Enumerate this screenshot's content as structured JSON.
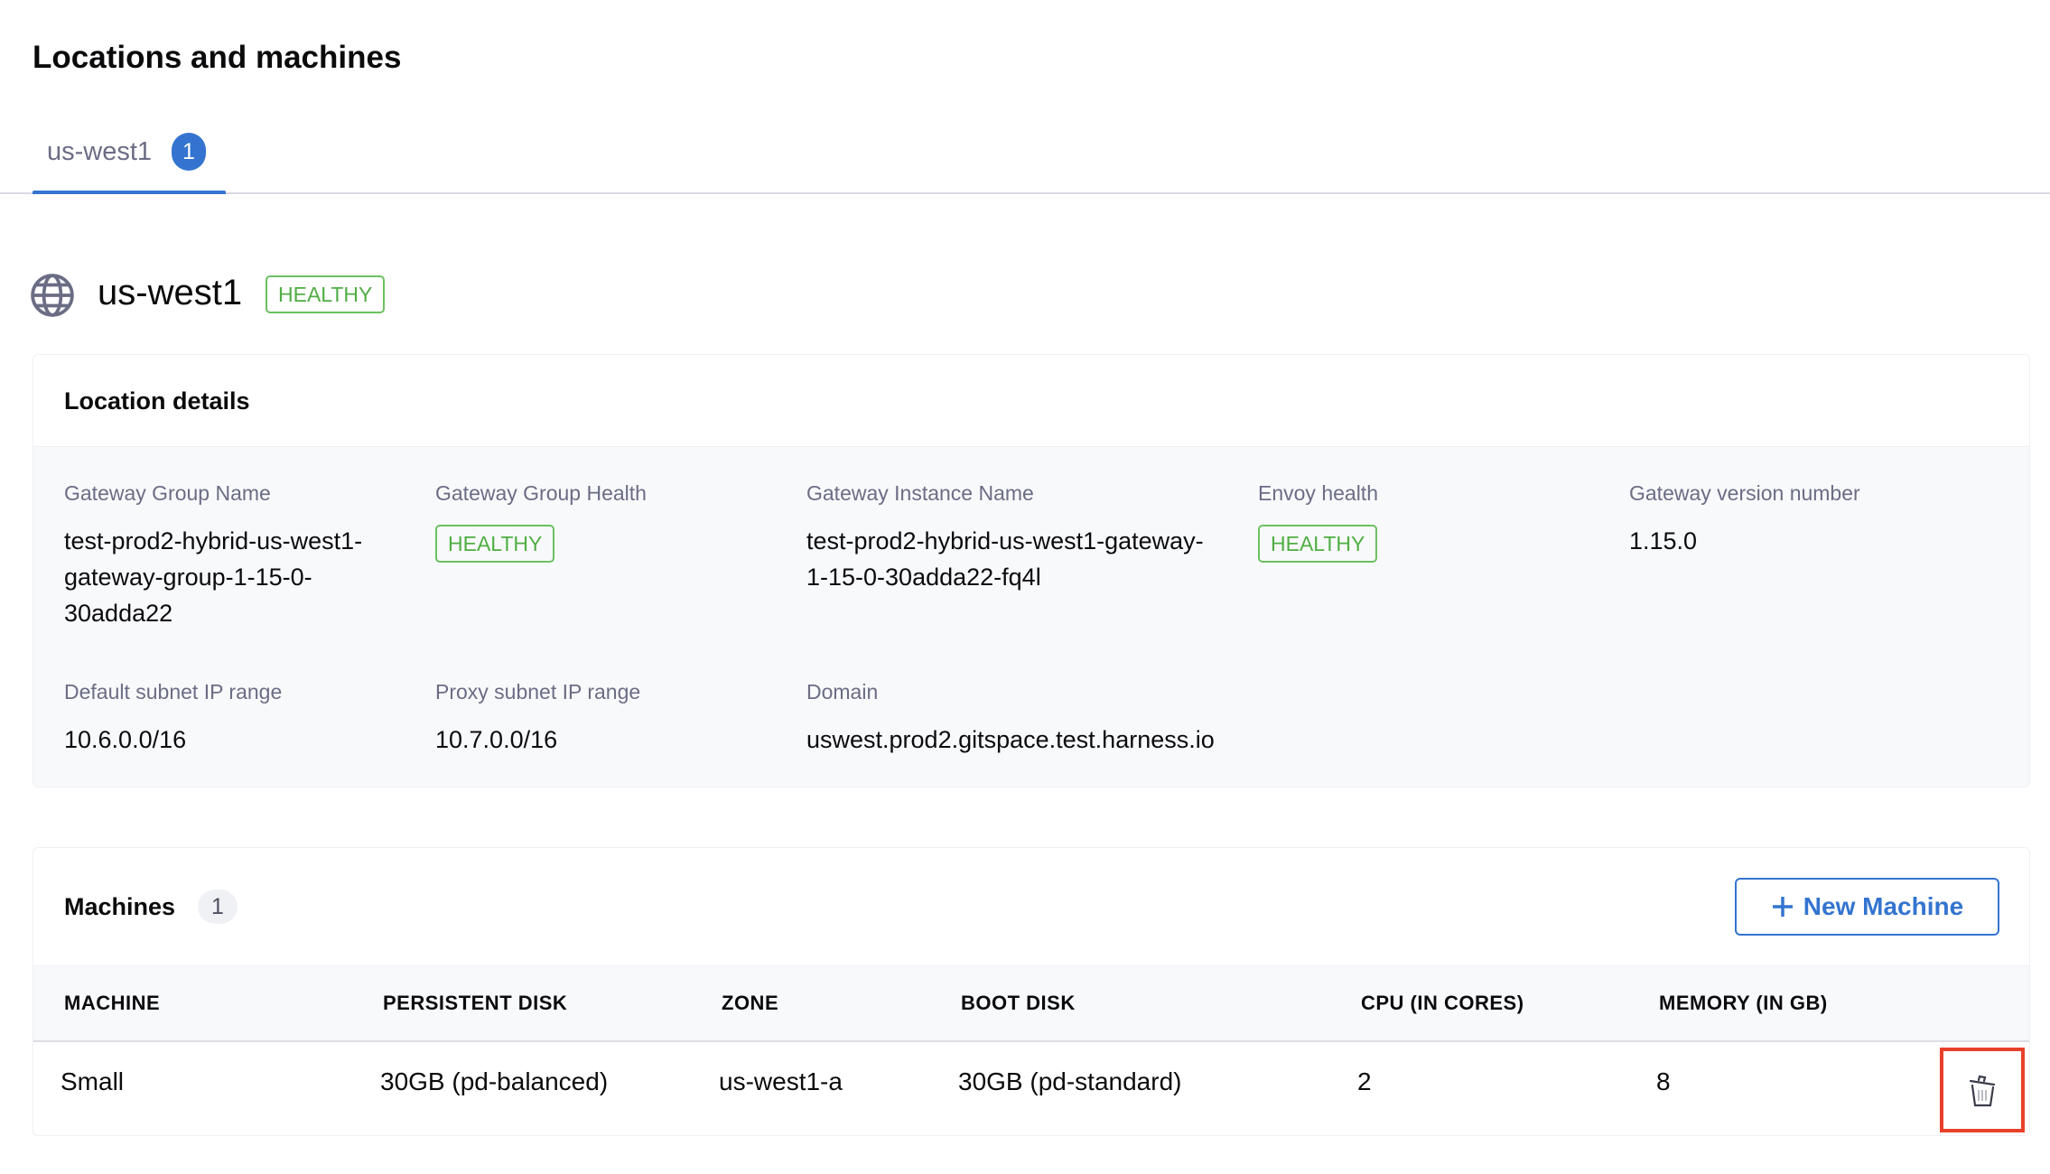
{
  "page": {
    "title": "Locations and machines"
  },
  "tabs": [
    {
      "label": "us-west1",
      "count": "1",
      "active": true
    }
  ],
  "location": {
    "name": "us-west1",
    "status": "HEALTHY",
    "details_title": "Location details",
    "fields": {
      "gateway_group_name": {
        "label": "Gateway Group Name",
        "value": "test-prod2-hybrid-us-west1-gateway-group-1-15-0-30adda22"
      },
      "gateway_group_health": {
        "label": "Gateway Group Health",
        "value": "HEALTHY"
      },
      "gateway_instance_name": {
        "label": "Gateway Instance Name",
        "value": "test-prod2-hybrid-us-west1-gateway-1-15-0-30adda22-fq4l"
      },
      "envoy_health": {
        "label": "Envoy health",
        "value": "HEALTHY"
      },
      "gateway_version": {
        "label": "Gateway version number",
        "value": "1.15.0"
      },
      "default_subnet": {
        "label": "Default subnet IP range",
        "value": "10.6.0.0/16"
      },
      "proxy_subnet": {
        "label": "Proxy subnet IP range",
        "value": "10.7.0.0/16"
      },
      "domain": {
        "label": "Domain",
        "value": "uswest.prod2.gitspace.test.harness.io"
      }
    }
  },
  "machines": {
    "title": "Machines",
    "count": "1",
    "new_button": "New Machine",
    "columns": [
      "MACHINE",
      "PERSISTENT DISK",
      "ZONE",
      "BOOT DISK",
      "CPU (IN CORES)",
      "MEMORY (IN GB)"
    ],
    "rows": [
      [
        "Small",
        "30GB (pd-balanced)",
        "us-west1-a",
        "30GB (pd-standard)",
        "2",
        "8"
      ]
    ]
  },
  "colors": {
    "accent": "#3474d0",
    "healthy": "#4fae43",
    "highlight": "#e8412b"
  }
}
